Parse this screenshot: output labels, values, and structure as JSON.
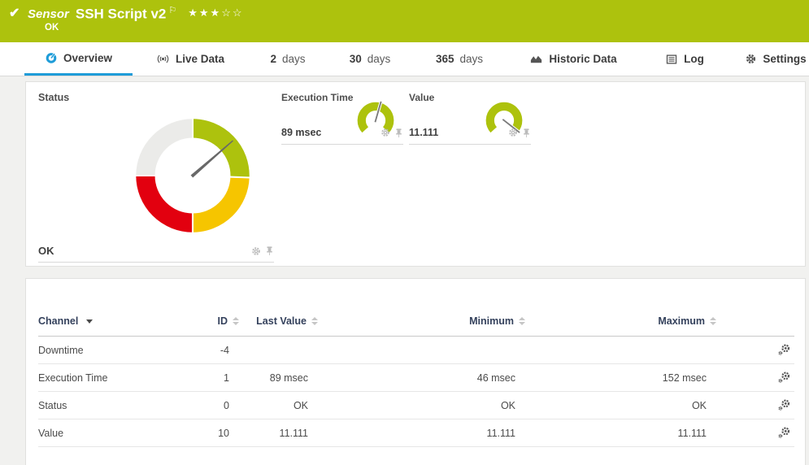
{
  "header": {
    "status_glyph": "✔",
    "type_label": "Sensor",
    "sensor_name": "SSH Script v2",
    "flag_glyph": "⚐",
    "stars": "★★★☆☆",
    "status": "OK"
  },
  "tabs": {
    "overview": {
      "label": "Overview",
      "active": true
    },
    "live_data": {
      "label": "Live Data"
    },
    "days2": {
      "num": "2",
      "unit": "days"
    },
    "days30": {
      "num": "30",
      "unit": "days"
    },
    "days365": {
      "num": "365",
      "unit": "days"
    },
    "historic": {
      "label": "Historic Data"
    },
    "log": {
      "label": "Log"
    },
    "settings": {
      "label": "Settings"
    }
  },
  "gauges": {
    "status": {
      "label": "Status",
      "value": "OK",
      "needle_deg": 49
    },
    "execution_time": {
      "label": "Execution Time",
      "value": "89 msec",
      "needle_deg": 16
    },
    "value": {
      "label": "Value",
      "value": "11.111",
      "needle_deg": 128
    }
  },
  "chart_data": [
    {
      "type": "gauge",
      "title": "Status",
      "value": "OK",
      "needle_deg": 49,
      "segments": [
        {
          "label": "up",
          "color": "#adc20d",
          "from_deg": 0,
          "to_deg": 92
        },
        {
          "label": "warning",
          "color": "#f6c500",
          "from_deg": 92,
          "to_deg": 180
        },
        {
          "label": "down",
          "color": "#e2000f",
          "from_deg": 180,
          "to_deg": 270
        },
        {
          "label": "none",
          "color": "#ebebe9",
          "from_deg": 270,
          "to_deg": 360
        }
      ]
    },
    {
      "type": "gauge",
      "title": "Execution Time",
      "value": "89 msec",
      "needle_deg": 16,
      "arc_color": "#adc20d"
    },
    {
      "type": "gauge",
      "title": "Value",
      "value": "11.111",
      "needle_deg": 128,
      "arc_color": "#adc20d"
    }
  ],
  "table": {
    "headers": {
      "channel": "Channel",
      "id": "ID",
      "last_value": "Last Value",
      "minimum": "Minimum",
      "maximum": "Maximum"
    },
    "rows": [
      {
        "channel": "Downtime",
        "id": "-4",
        "last_value": "",
        "minimum": "",
        "maximum": ""
      },
      {
        "channel": "Execution Time",
        "id": "1",
        "last_value": "89 msec",
        "minimum": "46 msec",
        "maximum": "152 msec"
      },
      {
        "channel": "Status",
        "id": "0",
        "last_value": "OK",
        "minimum": "OK",
        "maximum": "OK"
      },
      {
        "channel": "Value",
        "id": "10",
        "last_value": "11.111",
        "minimum": "11.111",
        "maximum": "11.111"
      }
    ]
  },
  "colors": {
    "ok_green": "#adc20d",
    "warning_yellow": "#f6c500",
    "error_red": "#e2000f",
    "accent_blue": "#1e9cd8"
  }
}
